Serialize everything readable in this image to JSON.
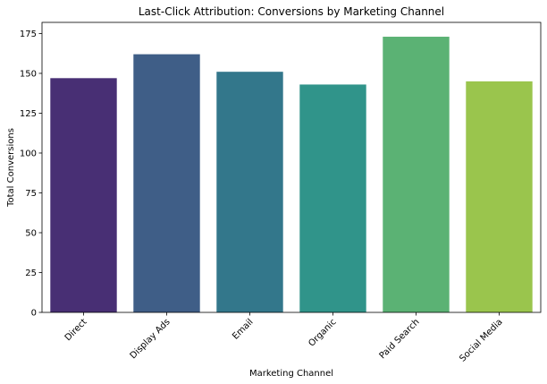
{
  "chart_data": {
    "type": "bar",
    "title": "Last-Click Attribution: Conversions by Marketing Channel",
    "xlabel": "Marketing Channel",
    "ylabel": "Total Conversions",
    "categories": [
      "Direct",
      "Display Ads",
      "Email",
      "Organic",
      "Paid Search",
      "Social Media"
    ],
    "values": [
      147,
      162,
      151,
      143,
      173,
      145
    ],
    "colors": [
      "#482f74",
      "#3f5e87",
      "#33778b",
      "#30948a",
      "#5bb274",
      "#9ac54d"
    ],
    "ylim": [
      0,
      182
    ],
    "yticks": [
      0,
      25,
      50,
      75,
      100,
      125,
      150,
      175
    ],
    "grid": false,
    "legend": "none",
    "xtick_rotation": 45
  }
}
